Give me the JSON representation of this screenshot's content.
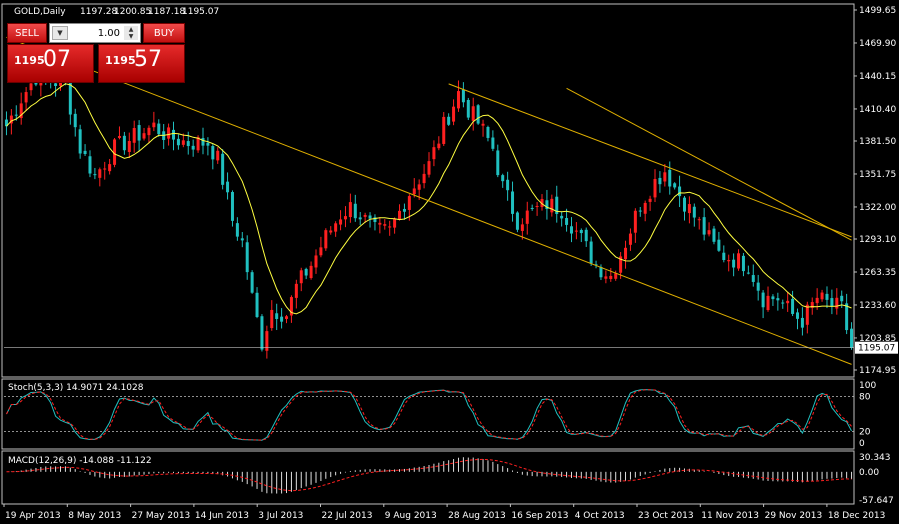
{
  "chart_data": {
    "type": "candlestick",
    "symbol_header": "GOLD,Daily",
    "ohlc": [
      "1197.28",
      "1200.85",
      "1187.18",
      "1195.07"
    ],
    "price_ticks": [
      "1499.65",
      "1469.90",
      "1440.15",
      "1410.40",
      "1381.50",
      "1351.75",
      "1322.00",
      "1293.10",
      "1263.35",
      "1233.60",
      "1203.85",
      "1174.95"
    ],
    "current_price": "1195.07",
    "date_ticks": [
      "19 Apr 2013",
      "8 May 2013",
      "27 May 2013",
      "14 Jun 2013",
      "3 Jul 2013",
      "22 Jul 2013",
      "9 Aug 2013",
      "28 Aug 2013",
      "16 Sep 2013",
      "4 Oct 2013",
      "23 Oct 2013",
      "11 Nov 2013",
      "29 Nov 2013",
      "18 Dec 2013"
    ],
    "ylim": [
      1174.95,
      1499.65
    ],
    "colors": {
      "up": "#ff2020",
      "down": "#20c0c0",
      "ma": "#ffff40",
      "channel": "#e0b000",
      "macd_signal": "#ff2020"
    },
    "price_anchors": [
      [
        0,
        1395
      ],
      [
        3,
        1420
      ],
      [
        6,
        1440
      ],
      [
        10,
        1435
      ],
      [
        12,
        1432
      ],
      [
        15,
        1375
      ],
      [
        18,
        1350
      ],
      [
        22,
        1375
      ],
      [
        26,
        1385
      ],
      [
        30,
        1395
      ],
      [
        33,
        1385
      ],
      [
        37,
        1380
      ],
      [
        41,
        1380
      ],
      [
        43,
        1365
      ],
      [
        46,
        1310
      ],
      [
        48,
        1290
      ],
      [
        50,
        1240
      ],
      [
        52,
        1200
      ],
      [
        54,
        1230
      ],
      [
        57,
        1225
      ],
      [
        59,
        1250
      ],
      [
        62,
        1270
      ],
      [
        65,
        1295
      ],
      [
        68,
        1315
      ],
      [
        70,
        1322
      ],
      [
        72,
        1315
      ],
      [
        75,
        1300
      ],
      [
        78,
        1300
      ],
      [
        82,
        1335
      ],
      [
        86,
        1360
      ],
      [
        89,
        1395
      ],
      [
        92,
        1425
      ],
      [
        94,
        1410
      ],
      [
        96,
        1398
      ],
      [
        99,
        1375
      ],
      [
        101,
        1340
      ],
      [
        104,
        1310
      ],
      [
        106,
        1315
      ],
      [
        110,
        1325
      ],
      [
        113,
        1320
      ],
      [
        116,
        1300
      ],
      [
        120,
        1270
      ],
      [
        123,
        1260
      ],
      [
        126,
        1290
      ],
      [
        129,
        1325
      ],
      [
        132,
        1345
      ],
      [
        134,
        1355
      ],
      [
        136,
        1340
      ],
      [
        139,
        1320
      ],
      [
        142,
        1300
      ],
      [
        145,
        1280
      ],
      [
        148,
        1275
      ],
      [
        151,
        1270
      ],
      [
        154,
        1240
      ],
      [
        157,
        1240
      ],
      [
        160,
        1225
      ],
      [
        162,
        1220
      ],
      [
        165,
        1240
      ],
      [
        167,
        1235
      ],
      [
        170,
        1230
      ],
      [
        172,
        1195
      ]
    ],
    "channel_lines": [
      [
        [
          114,
          1429
        ],
        [
          172,
          1292
        ]
      ],
      [
        [
          0,
          1475
        ],
        [
          172,
          1180
        ]
      ],
      [
        [
          90,
          1433
        ],
        [
          172,
          1295
        ]
      ]
    ],
    "stoch": {
      "label": "Stoch(5,3,3) 14.9071 24.1028",
      "levels": [
        "100",
        "80",
        "20",
        "0"
      ],
      "ylim": [
        0,
        100
      ]
    },
    "macd": {
      "label": "MACD(12,26,9) -14.088 -11.122",
      "levels": [
        "30.343",
        "0.00",
        "-57.647"
      ],
      "ylim": [
        -57.647,
        30.343
      ]
    }
  },
  "trade_panel": {
    "sell_label": "SELL",
    "buy_label": "BUY",
    "volume": "1.00",
    "bid_big": "1195",
    "bid_small": "07",
    "ask_big": "1195",
    "ask_small": "57"
  }
}
